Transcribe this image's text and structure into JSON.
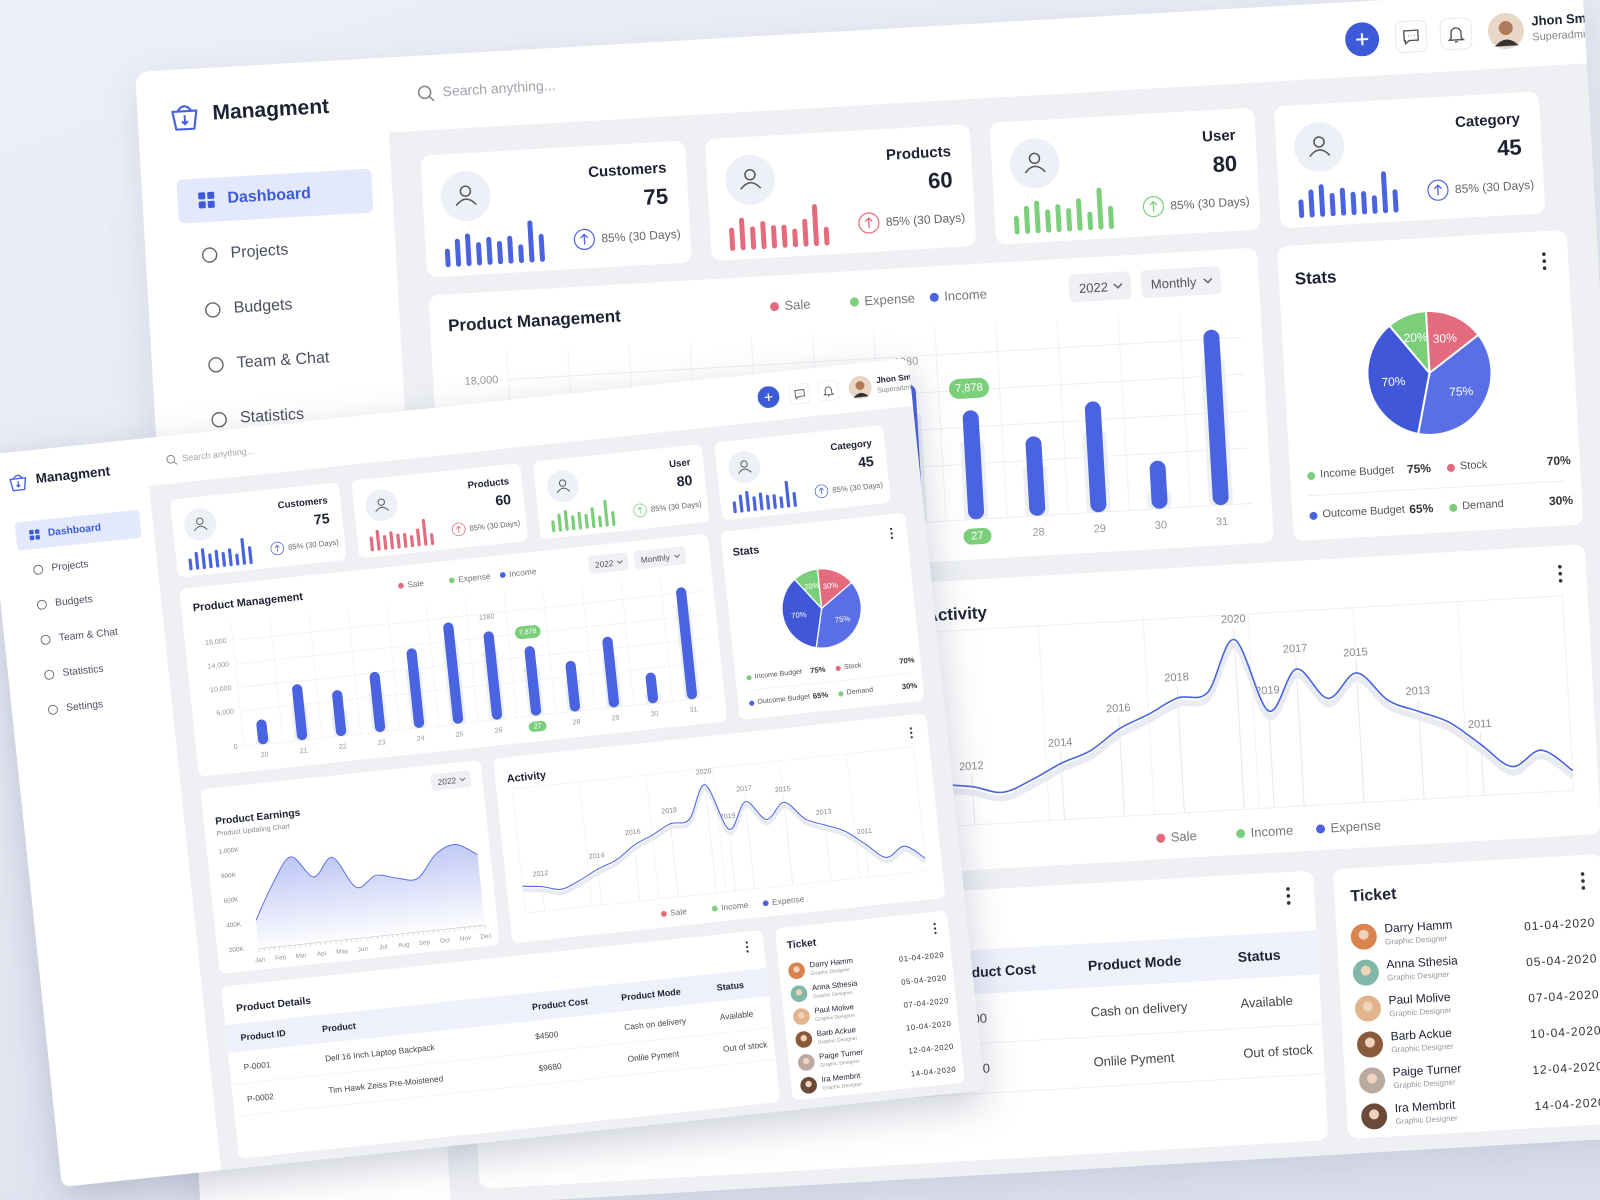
{
  "header": {
    "search_placeholder": "Search anything...",
    "user_name": "Jhon Smith",
    "user_role": "Superadmin"
  },
  "sidebar": {
    "brand": "Managment",
    "nav": [
      "Dashboard",
      "Projects",
      "Budgets",
      "Team & Chat",
      "Statistics",
      "Settings"
    ],
    "active": 0
  },
  "cards": [
    {
      "title": "Customers",
      "value": 75,
      "change": "85% (30 Days)",
      "color": "#4a63e0",
      "spark": [
        4,
        6,
        7,
        5,
        6,
        5,
        6,
        4,
        9,
        6
      ]
    },
    {
      "title": "Products",
      "value": 60,
      "change": "85% (30 Days)",
      "color": "#e46a7e",
      "spark": [
        5,
        7,
        5,
        6,
        5,
        5,
        4,
        6,
        9,
        4
      ]
    },
    {
      "title": "User",
      "value": 80,
      "change": "85% (30 Days)",
      "color": "#7ccf7a",
      "spark": [
        4,
        6,
        7,
        5,
        6,
        5,
        7,
        4,
        9,
        5
      ]
    },
    {
      "title": "Category",
      "value": 45,
      "change": "85% (30 Days)",
      "color": "#4a63e0",
      "spark": [
        4,
        6,
        7,
        5,
        6,
        5,
        5,
        4,
        9,
        5
      ]
    }
  ],
  "chart_data": [
    {
      "type": "bar",
      "title": "Product Management",
      "legend": [
        {
          "name": "Sale",
          "color": "#e46a7e"
        },
        {
          "name": "Expense",
          "color": "#7ccf7a"
        },
        {
          "name": "Income",
          "color": "#4a63e0"
        }
      ],
      "filters": [
        "2022",
        "Monthly"
      ],
      "categories": [
        "20",
        "21",
        "22",
        "23",
        "24",
        "25",
        "26",
        "27",
        "28",
        "29",
        "30",
        "31"
      ],
      "values": [
        4200,
        9500,
        7800,
        10200,
        13500,
        17200,
        15000,
        11800,
        8600,
        12000,
        5200,
        19000
      ],
      "color": "#4a63e0",
      "ylim": [
        0,
        20000
      ],
      "yticks": [
        0,
        {
          "value": 6000,
          "label": "6,000"
        },
        {
          "value": 10000,
          "label": "10,000"
        },
        {
          "value": 14000,
          "label": "14,000"
        },
        {
          "value": 18000,
          "label": "18,000"
        }
      ],
      "grid": true,
      "highlight_index": 7,
      "annotations": [
        {
          "at": 6,
          "label": "1280"
        },
        {
          "at": 7,
          "label": "7,878",
          "color": "#7ccf7a"
        }
      ]
    },
    {
      "type": "pie",
      "title": "Stats",
      "values": [
        30,
        75,
        70,
        20
      ],
      "value_labels": [
        "30%",
        "75%",
        "70%",
        "20%"
      ],
      "colors": [
        "#e46a7e",
        "#5a6fe6",
        "#3f57d8",
        "#7ccf7a"
      ],
      "legend": [
        {
          "name": "Income Budget",
          "color": "#7ccf7a",
          "label": "75%"
        },
        {
          "name": "Stock",
          "color": "#e46a7e",
          "label": "70%"
        },
        {
          "name": "Outcome Budget",
          "color": "#4a63e0",
          "label": "65%"
        },
        {
          "name": "Demand",
          "color": "#7ccf7a",
          "label": "30%"
        }
      ]
    },
    {
      "type": "area",
      "title": "Product Earnings",
      "subtitle": "Product Updating Chart",
      "filter": "2022",
      "categories": [
        "Jan",
        "Feb",
        "Mar",
        "Apr",
        "May",
        "Jun",
        "Jul",
        "Aug",
        "Sep",
        "Oct",
        "Nov",
        "Dec"
      ],
      "values": [
        420000,
        700000,
        900000,
        720000,
        860000,
        600000,
        680000,
        640000,
        620000,
        800000,
        860000,
        760000
      ],
      "ylim": [
        200000,
        1000000
      ],
      "yticks": [
        {
          "value": 200000,
          "label": "200K"
        },
        {
          "value": 400000,
          "label": "400K"
        },
        {
          "value": 600000,
          "label": "600K"
        },
        {
          "value": 800000,
          "label": "800K"
        },
        {
          "value": 1000000,
          "label": "1,000K"
        }
      ],
      "color": "#5a6fe6"
    },
    {
      "type": "line",
      "title": "Activity",
      "values": [
        30,
        28,
        24,
        30,
        38,
        44,
        55,
        62,
        70,
        72,
        100,
        60,
        82,
        65,
        78,
        62,
        55,
        48,
        35,
        22,
        30,
        18
      ],
      "point_labels": [
        null,
        "2012",
        null,
        null,
        "2014",
        null,
        "2016",
        null,
        "2018",
        null,
        "2020",
        "2019",
        "2017",
        null,
        "2015",
        null,
        "2013",
        null,
        "2011",
        null,
        null,
        null
      ],
      "color": "#4a63e0",
      "legend": [
        {
          "name": "Sale",
          "color": "#e46a7e"
        },
        {
          "name": "Income",
          "color": "#7ccf7a"
        },
        {
          "name": "Expense",
          "color": "#4a63e0"
        }
      ]
    }
  ],
  "table": {
    "title": "Product Details",
    "columns": [
      "Product ID",
      "Product",
      "Product Cost",
      "Product Mode",
      "Status"
    ],
    "rows": [
      [
        "P-0001",
        "Dell 16 Inch Laptop Backpack",
        "$4500",
        "Cash on delivery",
        "Available"
      ],
      [
        "P-0002",
        "Tim Hawk Zeiss Pre-Moistened",
        "$9680",
        "Onlile Pyment",
        "Out of stock"
      ]
    ]
  },
  "ticket": {
    "title": "Ticket",
    "items": [
      {
        "name": "Darry Hamm",
        "role": "Graphic Designer",
        "date": "01-04-2020"
      },
      {
        "name": "Anna Sthesia",
        "role": "Graphic Designer",
        "date": "05-04-2020"
      },
      {
        "name": "Paul Molive",
        "role": "Graphic Designer",
        "date": "07-04-2020"
      },
      {
        "name": "Barb Ackue",
        "role": "Graphic Designer",
        "date": "10-04-2020"
      },
      {
        "name": "Paige Turner",
        "role": "Graphic Designer",
        "date": "12-04-2020"
      },
      {
        "name": "Ira Membrit",
        "role": "Graphic Designer",
        "date": "14-04-2020"
      }
    ]
  }
}
